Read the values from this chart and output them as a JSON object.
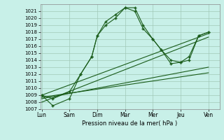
{
  "xlabel": "Pression niveau de la mer( hPa )",
  "background_color": "#c8f0e8",
  "grid_color": "#a0c8b8",
  "line_color": "#1a5c1a",
  "ylim": [
    1007,
    1022
  ],
  "yticks": [
    1007,
    1008,
    1009,
    1010,
    1011,
    1012,
    1013,
    1014,
    1015,
    1016,
    1017,
    1018,
    1019,
    1020,
    1021
  ],
  "xtick_labels": [
    "Lun",
    "Sam",
    "Dim",
    "Mar",
    "Mer",
    "Jeu",
    "Ven"
  ],
  "xtick_positions": [
    0,
    1,
    2,
    3,
    4,
    5,
    6
  ],
  "xlim": [
    -0.05,
    6.4
  ],
  "line1_x": [
    0,
    0.4,
    1,
    1.4,
    1.8,
    2,
    2.3,
    2.65,
    3,
    3.35,
    3.65,
    4,
    4.3,
    4.65,
    5,
    5.3,
    5.65,
    6
  ],
  "line1_y": [
    1009,
    1008.5,
    1009.5,
    1012,
    1014.5,
    1017.5,
    1019,
    1020,
    1021.5,
    1021,
    1018.5,
    1017,
    1015.5,
    1013.5,
    1013.7,
    1014.5,
    1017.5,
    1018
  ],
  "line2_x": [
    0,
    0.4,
    1,
    1.4,
    1.8,
    2,
    2.3,
    2.65,
    3,
    3.35,
    3.65,
    4,
    4.3,
    4.65,
    5,
    5.3,
    5.65,
    6
  ],
  "line2_y": [
    1009,
    1007.5,
    1008.5,
    1012,
    1014.5,
    1017.5,
    1019.5,
    1020.5,
    1021.5,
    1021.5,
    1019.0,
    1017,
    1015.5,
    1014.0,
    1013.7,
    1014.0,
    1017.5,
    1018
  ],
  "trend1_x": [
    0,
    6
  ],
  "trend1_y": [
    1009,
    1017.8
  ],
  "trend2_x": [
    0,
    6
  ],
  "trend2_y": [
    1008,
    1017.3
  ],
  "trend3_x": [
    0,
    6
  ],
  "trend3_y": [
    1008.5,
    1013
  ],
  "trend4_x": [
    0,
    6
  ],
  "trend4_y": [
    1008.7,
    1012.2
  ]
}
